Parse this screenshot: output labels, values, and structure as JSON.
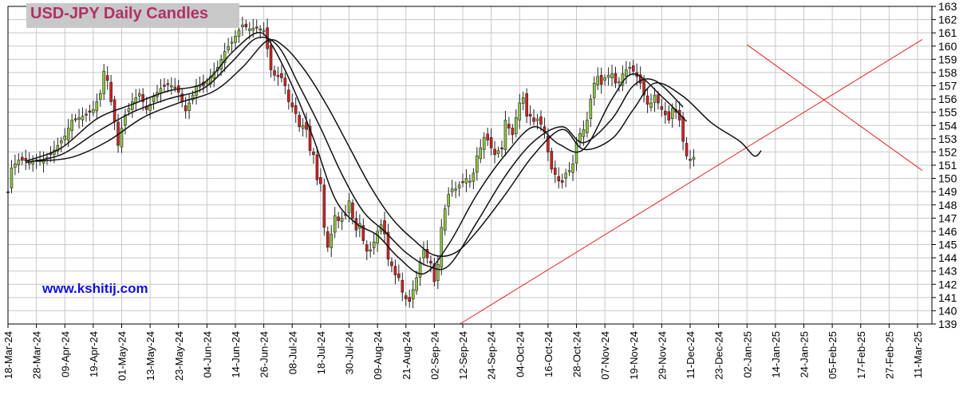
{
  "title": "USD-JPY Daily Candles",
  "website": "www.kshitij.com",
  "colors": {
    "background": "#ffffff",
    "grid": "#c8c8c8",
    "candle_up": "#8dc63f",
    "candle_down": "#d42020",
    "candle_outline": "#222222",
    "moving_average": "#111111",
    "trendline": "#e02020",
    "title_bg": "#c8c8c8",
    "title_text": "#b03068",
    "website_text": "#1010e0"
  },
  "chart_data": {
    "type": "candlestick",
    "title": "USD-JPY Daily Candles",
    "ylim": [
      139,
      163
    ],
    "y_ticks": [
      139,
      140,
      141,
      142,
      143,
      144,
      145,
      146,
      147,
      148,
      149,
      150,
      151,
      152,
      153,
      154,
      155,
      156,
      157,
      158,
      159,
      160,
      161,
      162,
      163
    ],
    "y_axis_side": "right",
    "grid": true,
    "x_tick_labels": [
      "18-Mar-24",
      "28-Mar-24",
      "09-Apr-24",
      "19-Apr-24",
      "01-May-24",
      "13-May-24",
      "23-May-24",
      "04-Jun-24",
      "14-Jun-24",
      "26-Jun-24",
      "08-Jul-24",
      "18-Jul-24",
      "30-Jul-24",
      "09-Aug-24",
      "21-Aug-24",
      "02-Sep-24",
      "12-Sep-24",
      "24-Sep-24",
      "04-Oct-24",
      "16-Oct-24",
      "28-Oct-24",
      "07-Nov-24",
      "19-Nov-24",
      "29-Nov-24",
      "11-Dec-24",
      "23-Dec-24",
      "02-Jan-25",
      "14-Jan-25",
      "24-Jan-25",
      "05-Feb-25",
      "17-Feb-25",
      "27-Feb-25",
      "11-Mar-25"
    ],
    "price_path": [
      [
        0,
        149.0
      ],
      [
        1,
        150.8
      ],
      [
        3,
        151.4
      ],
      [
        6,
        151.3
      ],
      [
        10,
        151.4
      ],
      [
        12,
        151.8
      ],
      [
        14,
        152.5
      ],
      [
        16,
        153.2
      ],
      [
        18,
        154.4
      ],
      [
        20,
        154.6
      ],
      [
        22,
        154.8
      ],
      [
        24,
        155.2
      ],
      [
        26,
        156.4
      ],
      [
        27,
        158.1
      ],
      [
        28,
        157.4
      ],
      [
        29,
        155.8
      ],
      [
        30,
        154.3
      ],
      [
        31,
        152.5
      ],
      [
        32,
        153.8
      ],
      [
        33,
        154.8
      ],
      [
        35,
        155.8
      ],
      [
        37,
        156.4
      ],
      [
        39,
        155.2
      ],
      [
        40,
        155.6
      ],
      [
        41,
        156.2
      ],
      [
        43,
        156.8
      ],
      [
        45,
        157.1
      ],
      [
        47,
        156.9
      ],
      [
        48,
        156.5
      ],
      [
        50,
        155.1
      ],
      [
        52,
        156.3
      ],
      [
        53,
        157.0
      ],
      [
        55,
        157.0
      ],
      [
        57,
        157.7
      ],
      [
        59,
        158.4
      ],
      [
        61,
        159.6
      ],
      [
        63,
        160.3
      ],
      [
        65,
        161.2
      ],
      [
        66,
        161.6
      ],
      [
        68,
        161.3
      ],
      [
        70,
        161.4
      ],
      [
        72,
        161.2
      ],
      [
        73,
        159.8
      ],
      [
        74,
        158.2
      ],
      [
        75,
        157.8
      ],
      [
        77,
        157.6
      ],
      [
        78,
        157.0
      ],
      [
        79,
        155.8
      ],
      [
        80,
        155.4
      ],
      [
        81,
        154.9
      ],
      [
        82,
        153.9
      ],
      [
        83,
        154.0
      ],
      [
        84,
        153.7
      ],
      [
        85,
        152.1
      ],
      [
        86,
        151.8
      ],
      [
        87,
        149.9
      ],
      [
        88,
        149.6
      ],
      [
        89,
        146.3
      ],
      [
        90,
        144.8
      ],
      [
        91,
        145.8
      ],
      [
        92,
        147.2
      ],
      [
        93,
        146.8
      ],
      [
        94,
        147.0
      ],
      [
        95,
        147.2
      ],
      [
        96,
        148.3
      ],
      [
        97,
        147.0
      ],
      [
        98,
        146.1
      ],
      [
        99,
        146.6
      ],
      [
        100,
        145.3
      ],
      [
        101,
        144.5
      ],
      [
        102,
        144.6
      ],
      [
        103,
        145.2
      ],
      [
        104,
        146.0
      ],
      [
        105,
        146.5
      ],
      [
        106,
        145.8
      ],
      [
        107,
        143.9
      ],
      [
        108,
        143.4
      ],
      [
        109,
        142.7
      ],
      [
        110,
        142.5
      ],
      [
        111,
        141.4
      ],
      [
        112,
        140.9
      ],
      [
        113,
        140.7
      ],
      [
        114,
        141.6
      ],
      [
        115,
        142.5
      ],
      [
        116,
        143.7
      ],
      [
        117,
        144.6
      ],
      [
        118,
        144.0
      ],
      [
        119,
        143.6
      ],
      [
        120,
        142.2
      ],
      [
        121,
        143.5
      ],
      [
        122,
        146.3
      ],
      [
        123,
        147.7
      ],
      [
        124,
        148.8
      ],
      [
        125,
        149.2
      ],
      [
        126,
        149.2
      ],
      [
        127,
        149.5
      ],
      [
        128,
        149.7
      ],
      [
        129,
        150.0
      ],
      [
        130,
        149.8
      ],
      [
        131,
        150.4
      ],
      [
        132,
        151.7
      ],
      [
        133,
        152.3
      ],
      [
        134,
        153.1
      ],
      [
        135,
        152.9
      ],
      [
        136,
        152.3
      ],
      [
        137,
        151.8
      ],
      [
        138,
        152.1
      ],
      [
        139,
        152.3
      ],
      [
        140,
        154.4
      ],
      [
        141,
        153.8
      ],
      [
        142,
        153.3
      ],
      [
        143,
        154.6
      ],
      [
        144,
        155.7
      ],
      [
        145,
        156.1
      ],
      [
        146,
        154.7
      ],
      [
        147,
        154.7
      ],
      [
        148,
        154.3
      ],
      [
        149,
        154.5
      ],
      [
        150,
        154.1
      ],
      [
        151,
        153.5
      ],
      [
        152,
        152.0
      ],
      [
        153,
        150.7
      ],
      [
        154,
        150.3
      ],
      [
        155,
        149.8
      ],
      [
        156,
        149.7
      ],
      [
        157,
        150.4
      ],
      [
        158,
        150.6
      ],
      [
        159,
        151.1
      ],
      [
        160,
        152.7
      ],
      [
        161,
        153.4
      ],
      [
        162,
        153.7
      ],
      [
        163,
        154.4
      ],
      [
        164,
        156.0
      ],
      [
        165,
        157.2
      ],
      [
        166,
        157.7
      ],
      [
        167,
        157.1
      ],
      [
        168,
        157.6
      ],
      [
        169,
        157.8
      ],
      [
        170,
        157.9
      ],
      [
        171,
        157.2
      ],
      [
        172,
        157.3
      ],
      [
        173,
        157.9
      ],
      [
        174,
        158.2
      ],
      [
        175,
        158.4
      ],
      [
        176,
        158.1
      ],
      [
        177,
        157.7
      ],
      [
        178,
        157.2
      ],
      [
        179,
        156.3
      ],
      [
        180,
        155.6
      ],
      [
        181,
        155.7
      ],
      [
        182,
        156.3
      ],
      [
        183,
        155.7
      ],
      [
        184,
        155.2
      ],
      [
        185,
        154.8
      ],
      [
        186,
        154.4
      ],
      [
        187,
        155.3
      ],
      [
        188,
        155.0
      ],
      [
        189,
        154.4
      ],
      [
        190,
        152.8
      ],
      [
        191,
        151.7
      ],
      [
        192,
        151.4
      ],
      [
        193,
        151.6
      ]
    ],
    "moving_averages": [
      {
        "path": [
          [
            5,
            151.3
          ],
          [
            15,
            152.3
          ],
          [
            25,
            154.5
          ],
          [
            35,
            155.6
          ],
          [
            45,
            156.6
          ],
          [
            55,
            157.2
          ],
          [
            63,
            159.5
          ],
          [
            70,
            161.0
          ],
          [
            74,
            160.2
          ],
          [
            80,
            157.0
          ],
          [
            86,
            153.0
          ],
          [
            92,
            148.5
          ],
          [
            98,
            146.6
          ],
          [
            104,
            145.7
          ],
          [
            110,
            144.0
          ],
          [
            117,
            142.8
          ],
          [
            124,
            145.0
          ],
          [
            132,
            148.8
          ],
          [
            140,
            151.8
          ],
          [
            148,
            153.9
          ],
          [
            155,
            152.6
          ],
          [
            162,
            152.2
          ],
          [
            170,
            156.0
          ],
          [
            176,
            157.9
          ],
          [
            184,
            156.2
          ],
          [
            191,
            154.3
          ]
        ]
      },
      {
        "path": [
          [
            5,
            151.2
          ],
          [
            15,
            151.8
          ],
          [
            25,
            153.5
          ],
          [
            35,
            155.0
          ],
          [
            45,
            156.0
          ],
          [
            55,
            156.8
          ],
          [
            63,
            158.8
          ],
          [
            70,
            160.6
          ],
          [
            76,
            160.0
          ],
          [
            82,
            157.0
          ],
          [
            88,
            153.8
          ],
          [
            94,
            150.3
          ],
          [
            100,
            147.5
          ],
          [
            106,
            146.0
          ],
          [
            112,
            144.4
          ],
          [
            118,
            143.4
          ],
          [
            124,
            143.4
          ],
          [
            132,
            146.7
          ],
          [
            140,
            150.2
          ],
          [
            148,
            152.8
          ],
          [
            156,
            153.9
          ],
          [
            162,
            152.7
          ],
          [
            170,
            154.5
          ],
          [
            176,
            157.0
          ],
          [
            182,
            157.4
          ],
          [
            190,
            155.4
          ]
        ]
      },
      {
        "path": [
          [
            8,
            151.3
          ],
          [
            18,
            151.6
          ],
          [
            28,
            152.8
          ],
          [
            38,
            154.6
          ],
          [
            48,
            155.7
          ],
          [
            58,
            156.6
          ],
          [
            66,
            158.4
          ],
          [
            73,
            160.4
          ],
          [
            78,
            159.9
          ],
          [
            84,
            158.0
          ],
          [
            90,
            155.4
          ],
          [
            96,
            152.4
          ],
          [
            102,
            149.4
          ],
          [
            108,
            147.0
          ],
          [
            114,
            145.4
          ],
          [
            120,
            144.2
          ],
          [
            126,
            144.4
          ],
          [
            132,
            146.0
          ],
          [
            140,
            148.8
          ],
          [
            148,
            151.8
          ],
          [
            156,
            153.7
          ],
          [
            162,
            152.2
          ],
          [
            170,
            153.0
          ],
          [
            176,
            155.2
          ],
          [
            182,
            157.2
          ],
          [
            190,
            156.2
          ],
          [
            198,
            154.2
          ],
          [
            206,
            152.8
          ],
          [
            210,
            151.7
          ],
          [
            212,
            152.1
          ]
        ]
      }
    ],
    "trendlines": [
      {
        "from": [
          "11-Sep-24",
          139
        ],
        "to": [
          "13-Mar-25",
          160.5
        ]
      },
      {
        "from": [
          "02-Jan-25",
          160.1
        ],
        "to": [
          "13-Mar-25",
          150.6
        ]
      }
    ]
  }
}
